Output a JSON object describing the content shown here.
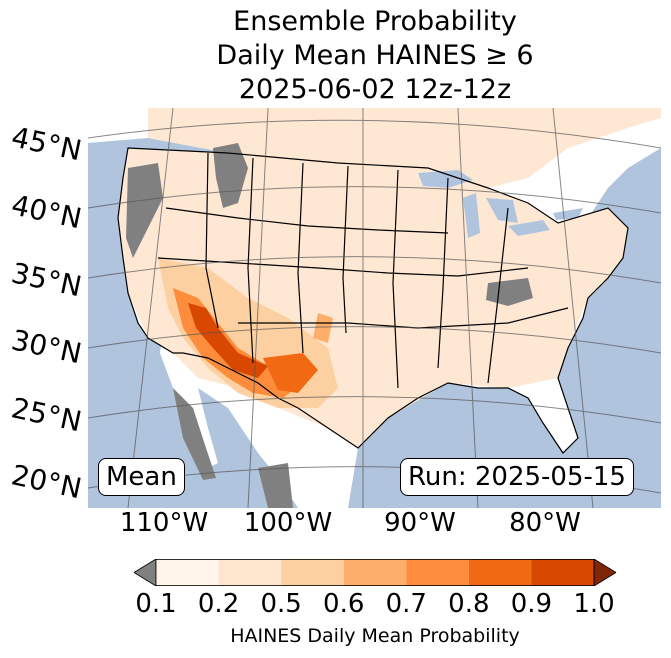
{
  "title": {
    "line1": "Ensemble Probability",
    "line2": "Daily Mean HAINES ≥ 6",
    "line3": "2025-06-02 12z-12z"
  },
  "map": {
    "ocean_color": "#b0c4de",
    "land_color": "#ffffff",
    "missing_color": "#808080",
    "lat_labels": [
      "45°N",
      "40°N",
      "35°N",
      "30°N",
      "25°N",
      "20°N"
    ],
    "lon_labels": [
      "110°W",
      "100°W",
      "90°W",
      "80°W"
    ]
  },
  "annotations": {
    "left_box": "Mean",
    "right_box": "Run: 2025-05-15"
  },
  "colorbar": {
    "title": "HAINES Daily Mean Probability",
    "tick_labels": [
      "0.1",
      "0.2",
      "0.5",
      "0.6",
      "0.7",
      "0.8",
      "0.9",
      "1.0"
    ],
    "colors": [
      "#fff5eb",
      "#fee6ce",
      "#fdd0a2",
      "#fdae6b",
      "#fd8d3c",
      "#f16913",
      "#d94801"
    ],
    "under_color": "#808080",
    "over_color": "#7f2704"
  }
}
